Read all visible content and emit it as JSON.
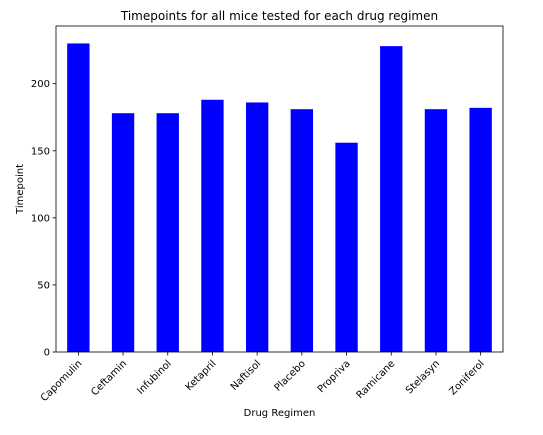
{
  "chart_data": {
    "type": "bar",
    "title": "Timepoints for all mice tested for each drug regimen",
    "xlabel": "Drug Regimen",
    "ylabel": "Timepoint",
    "categories": [
      "Capomulin",
      "Ceftamin",
      "Infubinol",
      "Ketapril",
      "Naftisol",
      "Placebo",
      "Propriva",
      "Ramicane",
      "Stelasyn",
      "Zoniferol"
    ],
    "values": [
      230,
      178,
      178,
      188,
      186,
      181,
      156,
      228,
      181,
      182
    ],
    "ylim": [
      0,
      243
    ],
    "yticks": [
      0,
      50,
      100,
      150,
      200
    ],
    "bar_color": "#0000ff",
    "grid": false,
    "legend": "none"
  }
}
